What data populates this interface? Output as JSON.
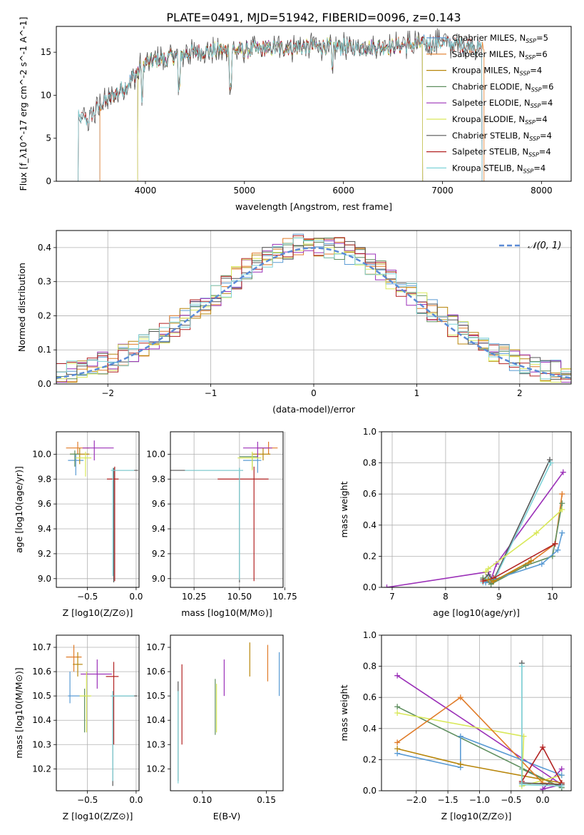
{
  "figure_title": "PLATE=0491, MJD=51942, FIBERID=0096, z=0.143",
  "colors": {
    "Chabrier MILES": "#5a9bd4",
    "Salpeter MILES": "#e07b28",
    "Kroupa MILES": "#b8860b",
    "Chabrier ELODIE": "#5f8f5f",
    "Salpeter ELODIE": "#9b30b8",
    "Kroupa ELODIE": "#d9e85a",
    "Chabrier STELIB": "#555555",
    "Salpeter STELIB": "#b22222",
    "Kroupa STELIB": "#7fd3d8",
    "gauss": "#5b8bd6"
  },
  "chart_data": [
    {
      "id": "spectrum",
      "type": "line",
      "title": "PLATE=0491, MJD=51942, FIBERID=0096, z=0.143",
      "xlabel": "wavelength [Angstrom, rest frame]",
      "ylabel": "Flux [f_λ10^-17 erg cm^-2 s^-1 A^-1]",
      "xlim": [
        3100,
        8300
      ],
      "ylim": [
        0,
        18
      ],
      "xticks": [
        4000,
        5000,
        6000,
        7000,
        8000
      ],
      "yticks": [
        0,
        5,
        10,
        15
      ],
      "grid": false,
      "legend_position": "right",
      "legend": [
        {
          "label": "Chabrier MILES, N_SSP=5",
          "key": "Chabrier MILES"
        },
        {
          "label": "Salpeter MILES, N_SSP=6",
          "key": "Salpeter MILES"
        },
        {
          "label": "Kroupa MILES, N_SSP=4",
          "key": "Kroupa MILES"
        },
        {
          "label": "Chabrier ELODIE, N_SSP=6",
          "key": "Chabrier ELODIE"
        },
        {
          "label": "Salpeter ELODIE, N_SSP=4",
          "key": "Salpeter ELODIE"
        },
        {
          "label": "Kroupa ELODIE, N_SSP=4",
          "key": "Kroupa ELODIE"
        },
        {
          "label": "Chabrier STELIB, N_SSP=4",
          "key": "Chabrier STELIB"
        },
        {
          "label": "Salpeter STELIB, N_SSP=4",
          "key": "Salpeter STELIB"
        },
        {
          "label": "Kroupa STELIB, N_SSP=4",
          "key": "Kroupa STELIB"
        }
      ],
      "continuum": {
        "x": [
          3300,
          3420,
          3520,
          3650,
          3800,
          3900,
          4000,
          4200,
          4400,
          4600,
          4800,
          5000,
          5200,
          5500,
          5800,
          6000,
          6300,
          6600,
          6800,
          7000,
          7200,
          7400
        ],
        "y": [
          7.5,
          7.2,
          8.5,
          9.8,
          11.0,
          12.5,
          13.8,
          14.3,
          14.8,
          15.1,
          15.3,
          15.2,
          15.4,
          15.6,
          15.7,
          15.6,
          15.6,
          15.8,
          16.0,
          16.1,
          15.9,
          15.6
        ]
      },
      "series_ranges": {
        "Chabrier MILES": [
          3540,
          7400
        ],
        "Salpeter MILES": [
          3540,
          7420
        ],
        "Kroupa MILES": [
          3920,
          6800
        ],
        "Chabrier ELODIE": [
          3920,
          6800
        ],
        "Salpeter ELODIE": [
          3920,
          6800
        ],
        "Kroupa ELODIE": [
          3920,
          6800
        ],
        "Chabrier STELIB": [
          3320,
          7400
        ],
        "Salpeter STELIB": [
          3320,
          7400
        ],
        "Kroupa STELIB": [
          3320,
          7400
        ]
      },
      "data_range": [
        3300,
        8000
      ]
    },
    {
      "id": "residuals",
      "type": "line",
      "xlabel": "(data-model)/error",
      "ylabel": "Normed distribution",
      "xlim": [
        -2.5,
        2.5
      ],
      "ylim": [
        0,
        0.45
      ],
      "xticks": [
        -2,
        -1,
        0,
        1,
        2
      ],
      "yticks": [
        0.0,
        0.1,
        0.2,
        0.3,
        0.4
      ],
      "grid": true,
      "legend_position": "top-right",
      "legend_label": "𝒩(0, 1)",
      "bin_width": 0.1,
      "gaussian": {
        "mu": 0,
        "sigma": 1
      }
    },
    {
      "id": "age-vs-Z",
      "type": "scatter",
      "xlabel": "Z [log10(Z/Z⊙)]",
      "ylabel": "age  [log10(age/yr)]",
      "xlim": [
        -0.82,
        0.03
      ],
      "ylim": [
        8.93,
        10.18
      ],
      "xticks": [
        -0.5,
        0.0
      ],
      "xtick_labels": [
        "−0.5",
        "0.0"
      ],
      "yticks": [
        9.0,
        9.2,
        9.4,
        9.6,
        9.8,
        10.0
      ],
      "grid": true,
      "points": [
        {
          "key": "Salpeter MILES",
          "x": -0.6,
          "xerr": [
            0.12,
            0.12
          ],
          "y": 10.05,
          "yerr": [
            0.05,
            0.05
          ]
        },
        {
          "key": "Chabrier MILES",
          "x": -0.62,
          "xerr": [
            0.08,
            0.08
          ],
          "y": 9.95,
          "yerr": [
            0.12,
            0.05
          ]
        },
        {
          "key": "Kroupa MILES",
          "x": -0.58,
          "xerr": [
            0.1,
            0.1
          ],
          "y": 10.0,
          "yerr": [
            0.08,
            0.05
          ]
        },
        {
          "key": "Chabrier ELODIE",
          "x": -0.63,
          "xerr": [
            0.05,
            0.05
          ],
          "y": 10.0,
          "yerr": [
            0.1,
            0.03
          ]
        },
        {
          "key": "Salpeter ELODIE",
          "x": -0.43,
          "xerr": [
            0.12,
            0.2
          ],
          "y": 10.05,
          "yerr": [
            0.1,
            0.06
          ]
        },
        {
          "key": "Kroupa ELODIE",
          "x": -0.52,
          "xerr": [
            0.1,
            0.06
          ],
          "y": 9.97,
          "yerr": [
            0.15,
            0.05
          ]
        },
        {
          "key": "Chabrier STELIB",
          "x": -0.23,
          "xerr": [
            0.02,
            0.25
          ],
          "y": 9.87,
          "yerr": [
            0.9,
            0.02
          ]
        },
        {
          "key": "Salpeter STELIB",
          "x": -0.22,
          "xerr": [
            0.08,
            0.04
          ],
          "y": 9.8,
          "yerr": [
            0.82,
            0.1
          ]
        },
        {
          "key": "Kroupa STELIB",
          "x": -0.24,
          "xerr": [
            0.02,
            0.22
          ],
          "y": 9.87,
          "yerr": [
            0.85,
            0.02
          ]
        }
      ]
    },
    {
      "id": "age-vs-mass",
      "type": "scatter",
      "xlabel": "mass [log10(M/M⊙)]",
      "xlim": [
        10.12,
        10.74
      ],
      "ylim": [
        8.93,
        10.18
      ],
      "xticks": [
        10.25,
        10.5,
        10.75
      ],
      "yticks": [
        9.0,
        9.2,
        9.4,
        9.6,
        9.8,
        10.0
      ],
      "grid": true,
      "points": [
        {
          "key": "Salpeter MILES",
          "x": 10.66,
          "xerr": [
            0.06,
            0.05
          ],
          "y": 10.05,
          "yerr": [
            0.05,
            0.05
          ]
        },
        {
          "key": "Chabrier MILES",
          "x": 10.6,
          "xerr": [
            0.08,
            0.02
          ],
          "y": 9.95,
          "yerr": [
            0.1,
            0.05
          ]
        },
        {
          "key": "Kroupa MILES",
          "x": 10.63,
          "xerr": [
            0.06,
            0.04
          ],
          "y": 10.0,
          "yerr": [
            0.05,
            0.05
          ]
        },
        {
          "key": "Chabrier ELODIE",
          "x": 10.57,
          "xerr": [
            0.07,
            0.03
          ],
          "y": 9.98,
          "yerr": [
            0.1,
            0.03
          ]
        },
        {
          "key": "Salpeter ELODIE",
          "x": 10.6,
          "xerr": [
            0.08,
            0.08
          ],
          "y": 10.05,
          "yerr": [
            0.08,
            0.05
          ]
        },
        {
          "key": "Kroupa ELODIE",
          "x": 10.57,
          "xerr": [
            0.08,
            0.05
          ],
          "y": 9.97,
          "yerr": [
            0.1,
            0.05
          ]
        },
        {
          "key": "Chabrier STELIB",
          "x": 10.5,
          "xerr": [
            0.38,
            0.02
          ],
          "y": 9.87,
          "yerr": [
            0.9,
            0.02
          ]
        },
        {
          "key": "Salpeter STELIB",
          "x": 10.58,
          "xerr": [
            0.2,
            0.08
          ],
          "y": 9.8,
          "yerr": [
            0.82,
            0.1
          ]
        },
        {
          "key": "Kroupa STELIB",
          "x": 10.5,
          "xerr": [
            0.3,
            0.02
          ],
          "y": 9.87,
          "yerr": [
            0.88,
            0.02
          ]
        }
      ]
    },
    {
      "id": "weight-vs-age",
      "type": "line",
      "xlabel": "age  [log10(age/yr)]",
      "ylabel": "mass weight",
      "xlim": [
        6.8,
        10.35
      ],
      "ylim": [
        0,
        1.0
      ],
      "xticks": [
        7,
        8,
        9,
        10
      ],
      "yticks": [
        0.0,
        0.2,
        0.4,
        0.6,
        0.8,
        1.0
      ],
      "grid": true,
      "series": [
        {
          "key": "Salpeter ELODIE",
          "x": [
            6.9,
            8.8,
            8.85,
            8.95,
            10.2
          ],
          "y": [
            0.0,
            0.1,
            0.05,
            0.15,
            0.74
          ]
        },
        {
          "key": "Chabrier STELIB",
          "x": [
            8.7,
            8.8,
            8.9,
            9.95
          ],
          "y": [
            0.05,
            0.08,
            0.05,
            0.82
          ]
        },
        {
          "key": "Kroupa STELIB",
          "x": [
            8.7,
            8.8,
            8.9,
            9.97
          ],
          "y": [
            0.03,
            0.06,
            0.04,
            0.8
          ]
        },
        {
          "key": "Salpeter MILES",
          "x": [
            8.75,
            8.85,
            9.5,
            10.05,
            10.18
          ],
          "y": [
            0.04,
            0.03,
            0.14,
            0.28,
            0.6
          ]
        },
        {
          "key": "Chabrier ELODIE",
          "x": [
            8.7,
            8.85,
            9.5,
            10.0,
            10.18
          ],
          "y": [
            0.06,
            0.02,
            0.14,
            0.2,
            0.54
          ]
        },
        {
          "key": "Kroupa ELODIE",
          "x": [
            8.75,
            8.8,
            9.7,
            10.18
          ],
          "y": [
            0.1,
            0.12,
            0.35,
            0.5
          ]
        },
        {
          "key": "Chabrier MILES",
          "x": [
            8.75,
            8.9,
            9.8,
            10.1,
            10.18
          ],
          "y": [
            0.03,
            0.05,
            0.15,
            0.24,
            0.35
          ]
        },
        {
          "key": "Salpeter STELIB",
          "x": [
            8.7,
            8.9,
            10.05
          ],
          "y": [
            0.04,
            0.06,
            0.28
          ]
        },
        {
          "key": "Kroupa MILES",
          "x": [
            8.8,
            8.9,
            9.6
          ],
          "y": [
            0.05,
            0.04,
            0.17
          ]
        }
      ]
    },
    {
      "id": "mass-vs-Z",
      "type": "scatter",
      "xlabel": "Z [log10(Z/Z⊙)]",
      "ylabel": "mass [log10(M/M⊙)]",
      "xlim": [
        -0.82,
        0.03
      ],
      "ylim": [
        10.11,
        10.75
      ],
      "xticks": [
        -0.5,
        0.0
      ],
      "xtick_labels": [
        "−0.5",
        "0.0"
      ],
      "yticks": [
        10.2,
        10.3,
        10.4,
        10.5,
        10.6,
        10.7
      ],
      "grid": true,
      "points": [
        {
          "key": "Salpeter MILES",
          "x": -0.64,
          "xerr": [
            0.08,
            0.08
          ],
          "y": 10.66,
          "yerr": [
            0.06,
            0.05
          ]
        },
        {
          "key": "Chabrier MILES",
          "x": -0.68,
          "xerr": [
            0.02,
            0.1
          ],
          "y": 10.5,
          "yerr": [
            0.03,
            0.1
          ]
        },
        {
          "key": "Kroupa MILES",
          "x": -0.6,
          "xerr": [
            0.05,
            0.05
          ],
          "y": 10.63,
          "yerr": [
            0.05,
            0.05
          ]
        },
        {
          "key": "Chabrier ELODIE",
          "x": -0.53,
          "xerr": [
            0.05,
            0.06
          ],
          "y": 10.5,
          "yerr": [
            0.15,
            0.03
          ]
        },
        {
          "key": "Salpeter ELODIE",
          "x": -0.4,
          "xerr": [
            0.17,
            0.15
          ],
          "y": 10.59,
          "yerr": [
            0.06,
            0.06
          ]
        },
        {
          "key": "Kroupa ELODIE",
          "x": -0.51,
          "xerr": [
            0.07,
            0.05
          ],
          "y": 10.5,
          "yerr": [
            0.15,
            0.1
          ]
        },
        {
          "key": "Chabrier STELIB",
          "x": -0.24,
          "xerr": [
            0.02,
            0.25
          ],
          "y": 10.5,
          "yerr": [
            0.37,
            0.02
          ]
        },
        {
          "key": "Salpeter STELIB",
          "x": -0.23,
          "xerr": [
            0.08,
            0.05
          ],
          "y": 10.58,
          "yerr": [
            0.28,
            0.06
          ]
        },
        {
          "key": "Kroupa STELIB",
          "x": -0.24,
          "xerr": [
            0.02,
            0.22
          ],
          "y": 10.5,
          "yerr": [
            0.35,
            0.02
          ]
        }
      ]
    },
    {
      "id": "mass-vs-ebv",
      "type": "scatter",
      "xlabel": "E(B-V)",
      "xlim": [
        0.075,
        0.163
      ],
      "ylim": [
        10.11,
        10.75
      ],
      "xticks": [
        0.1,
        0.15
      ],
      "yticks": [
        10.2,
        10.3,
        10.4,
        10.5,
        10.6,
        10.7
      ],
      "grid": false,
      "points": [
        {
          "key": "Salpeter MILES",
          "x": 0.151,
          "y": 10.63,
          "yerr": [
            0.07,
            0.08
          ]
        },
        {
          "key": "Chabrier MILES",
          "x": 0.16,
          "y": 10.58,
          "yerr": [
            0.08,
            0.1
          ]
        },
        {
          "key": "Kroupa MILES",
          "x": 0.137,
          "y": 10.65,
          "yerr": [
            0.07,
            0.07
          ]
        },
        {
          "key": "Chabrier ELODIE",
          "x": 0.11,
          "y": 10.45,
          "yerr": [
            0.11,
            0.12
          ]
        },
        {
          "key": "Salpeter ELODIE",
          "x": 0.117,
          "y": 10.58,
          "yerr": [
            0.08,
            0.07
          ]
        },
        {
          "key": "Kroupa ELODIE",
          "x": 0.111,
          "y": 10.45,
          "yerr": [
            0.1,
            0.1
          ]
        },
        {
          "key": "Chabrier STELIB",
          "x": 0.081,
          "y": 10.35,
          "yerr": [
            0.2,
            0.21
          ]
        },
        {
          "key": "Salpeter STELIB",
          "x": 0.084,
          "y": 10.46,
          "yerr": [
            0.16,
            0.17
          ]
        },
        {
          "key": "Kroupa STELIB",
          "x": 0.081,
          "y": 10.32,
          "yerr": [
            0.18,
            0.2
          ]
        }
      ]
    },
    {
      "id": "weight-vs-Z",
      "type": "line",
      "xlabel": "Z [log10(Z/Z⊙)]",
      "ylabel": "mass weight",
      "xlim": [
        -2.55,
        0.45
      ],
      "ylim": [
        0,
        1.0
      ],
      "xticks": [
        -2.0,
        -1.5,
        -1.0,
        -0.5,
        0.0
      ],
      "xtick_labels": [
        "−2.0",
        "−1.5",
        "−1.0",
        "−0.5",
        "0.0"
      ],
      "yticks": [
        0.0,
        0.2,
        0.4,
        0.6,
        0.8,
        1.0
      ],
      "grid": true,
      "series": [
        {
          "key": "Salpeter ELODIE",
          "x": [
            -2.3,
            0.3,
            0.0,
            0.3
          ],
          "y": [
            0.74,
            0.04,
            0.01,
            0.14
          ]
        },
        {
          "key": "Chabrier ELODIE",
          "x": [
            -2.3,
            0.3,
            -0.33,
            0.3
          ],
          "y": [
            0.54,
            0.02,
            0.14,
            0.02
          ]
        },
        {
          "key": "Kroupa ELODIE",
          "x": [
            -2.3,
            -0.3,
            -0.33,
            0.3
          ],
          "y": [
            0.5,
            0.35,
            0.03,
            0.1
          ]
        },
        {
          "key": "Salpeter MILES",
          "x": [
            -2.3,
            -1.3,
            0.0,
            0.3
          ],
          "y": [
            0.31,
            0.6,
            0.05,
            0.04
          ]
        },
        {
          "key": "Chabrier MILES",
          "x": [
            -2.3,
            -1.3,
            -1.3,
            0.3
          ],
          "y": [
            0.24,
            0.15,
            0.35,
            0.1
          ]
        },
        {
          "key": "Kroupa MILES",
          "x": [
            -2.3,
            -1.3,
            0.3
          ],
          "y": [
            0.27,
            0.17,
            0.05
          ]
        },
        {
          "key": "Chabrier STELIB",
          "x": [
            -0.33,
            -0.33,
            0.3
          ],
          "y": [
            0.82,
            0.05,
            0.04
          ]
        },
        {
          "key": "Salpeter STELIB",
          "x": [
            -0.33,
            0.0,
            0.3
          ],
          "y": [
            0.06,
            0.28,
            0.05
          ]
        },
        {
          "key": "Kroupa STELIB",
          "x": [
            -0.33,
            -0.33,
            0.3
          ],
          "y": [
            0.8,
            0.04,
            0.03
          ]
        }
      ]
    }
  ]
}
